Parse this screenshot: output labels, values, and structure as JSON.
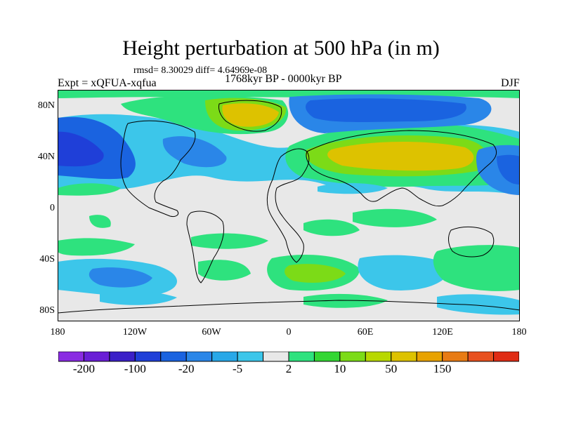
{
  "title": "Height perturbation at 500 hPa (in m)",
  "stats": "rmsd= 8.30029 diff= 4.64969e-08",
  "left_label": "Expt = xQFUA-xqfua",
  "center_label": "1768kyr BP - 0000kyr BP",
  "right_label": "DJF",
  "y_ticks": [
    "80N",
    "40N",
    "0",
    "40S",
    "80S"
  ],
  "x_ticks": [
    "180",
    "120W",
    "60W",
    "0",
    "60E",
    "120E",
    "180"
  ],
  "colorbar": {
    "colors": [
      "#8a2be2",
      "#6a1ed6",
      "#3b20c8",
      "#1f3fd8",
      "#1a63e0",
      "#2a86e8",
      "#28a8e8",
      "#3cc6ea",
      "#e8e8e8",
      "#2ee27e",
      "#33d633",
      "#7cdb17",
      "#b8d800",
      "#ddc200",
      "#e8a200",
      "#e87b14",
      "#e8501e",
      "#e02c14"
    ],
    "labels": [
      "-200",
      "-100",
      "-20",
      "-5",
      "2",
      "10",
      "50",
      "150"
    ]
  }
}
